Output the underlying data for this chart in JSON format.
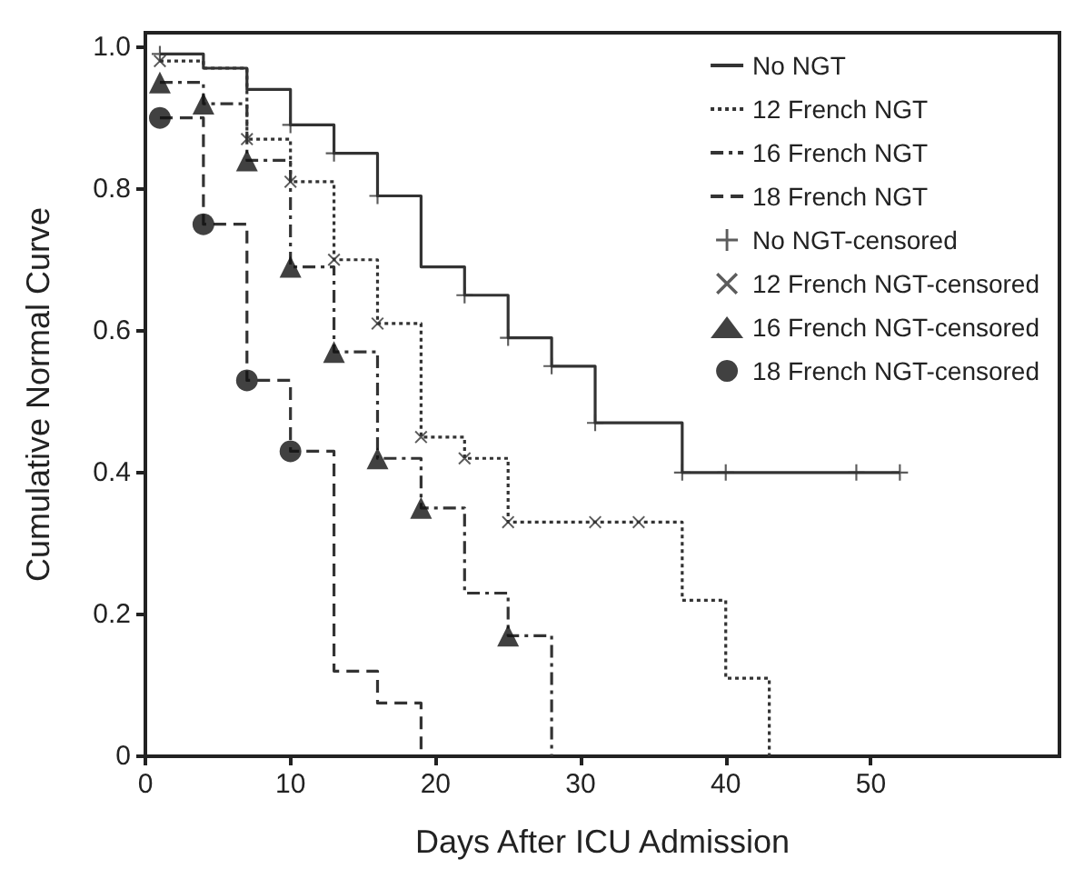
{
  "chart_data": {
    "type": "step",
    "xlabel": "Days After ICU Admission",
    "ylabel": "Cumulative Normal Curve",
    "xlim": [
      0,
      63
    ],
    "xticks": [
      0,
      10,
      20,
      30,
      40,
      50
    ],
    "ylim": [
      0,
      1.02
    ],
    "yticks": [
      0,
      0.2,
      0.4,
      0.6,
      0.8,
      {
        "value": 1,
        "label": "1.0"
      }
    ],
    "grid": false,
    "legend": "top right",
    "series": [
      {
        "name": "No NGT",
        "color": "#333333",
        "line_style": "solid",
        "marker": "none",
        "x": [
          1,
          4,
          7,
          10,
          13,
          16,
          19,
          22,
          25,
          28,
          31,
          37,
          52
        ],
        "values": [
          0.99,
          0.97,
          0.94,
          0.89,
          0.85,
          0.79,
          0.69,
          0.65,
          0.59,
          0.55,
          0.47,
          0.4,
          0.4
        ]
      },
      {
        "name": "12 French NGT",
        "color": "#333333",
        "line_style": "dotted",
        "marker": "none",
        "x": [
          1,
          4,
          7,
          10,
          13,
          16,
          19,
          22,
          25,
          37,
          40,
          43
        ],
        "values": [
          0.98,
          0.97,
          0.87,
          0.81,
          0.7,
          0.61,
          0.45,
          0.42,
          0.33,
          0.22,
          0.11,
          0
        ]
      },
      {
        "name": "16 French NGT",
        "color": "#333333",
        "line_style": "dashdot",
        "marker": "none",
        "x": [
          1,
          4,
          7,
          10,
          13,
          16,
          19,
          22,
          25,
          28
        ],
        "values": [
          0.95,
          0.92,
          0.84,
          0.69,
          0.57,
          0.42,
          0.35,
          0.23,
          0.17,
          0
        ]
      },
      {
        "name": "18 French NGT",
        "color": "#333333",
        "line_style": "dashed",
        "marker": "none",
        "x": [
          1,
          4,
          7,
          10,
          13,
          16,
          19
        ],
        "values": [
          0.9,
          0.75,
          0.53,
          0.43,
          0.12,
          0.075,
          0
        ]
      },
      {
        "name": "No NGT-censored",
        "type": "scatter",
        "color": "#333333",
        "marker": "plus",
        "x": [
          1,
          10,
          13,
          16,
          22,
          25,
          28,
          31,
          37,
          40,
          49,
          52
        ],
        "values": [
          0.99,
          0.89,
          0.85,
          0.79,
          0.65,
          0.59,
          0.55,
          0.47,
          0.4,
          0.4,
          0.4,
          0.4
        ]
      },
      {
        "name": "12 French NGT-censored",
        "type": "scatter",
        "color": "#333333",
        "marker": "cross",
        "x": [
          1,
          7,
          10,
          13,
          16,
          19,
          22,
          25,
          31,
          34
        ],
        "values": [
          0.98,
          0.87,
          0.81,
          0.7,
          0.61,
          0.45,
          0.42,
          0.33,
          0.33,
          0.33
        ]
      },
      {
        "name": "16 French NGT-censored",
        "type": "scatter",
        "color": "#111111",
        "marker": "triangle",
        "x": [
          1,
          4,
          7,
          10,
          13,
          16,
          19,
          25
        ],
        "values": [
          0.95,
          0.92,
          0.84,
          0.69,
          0.57,
          0.42,
          0.35,
          0.17
        ]
      },
      {
        "name": "18 French NGT-censored",
        "type": "scatter",
        "color": "#111111",
        "marker": "circle",
        "x": [
          1,
          4,
          7,
          10
        ],
        "values": [
          0.9,
          0.75,
          0.53,
          0.43
        ]
      }
    ]
  }
}
